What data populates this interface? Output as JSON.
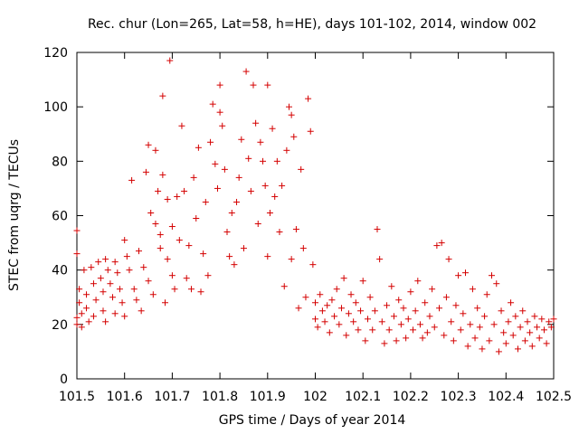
{
  "chart_data": {
    "type": "scatter",
    "title": "Rec. chur (Lon=265, Lat=58, h=HE), days 101-102, 2014, window 002",
    "xlabel": "GPS time / Days of year 2014",
    "ylabel": "STEC from uqrg / TECUs",
    "xlim": [
      101.5,
      102.5
    ],
    "ylim": [
      0,
      120
    ],
    "xticks": [
      "101.5",
      "101.6",
      "101.7",
      "101.8",
      "101.9",
      "102",
      "102.1",
      "102.2",
      "102.3",
      "102.4",
      "102.5"
    ],
    "yticks": [
      "0",
      "20",
      "40",
      "60",
      "80",
      "100",
      "120"
    ],
    "grid": false,
    "legend": "none",
    "marker": "plus",
    "color": "#d40000",
    "series": [
      {
        "points": [
          [
            101.5,
            54.5
          ],
          [
            101.5,
            46.0
          ],
          [
            101.5,
            20.0
          ],
          [
            101.5,
            22.5
          ],
          [
            101.505,
            28.0
          ],
          [
            101.505,
            33.0
          ],
          [
            101.51,
            19.0
          ],
          [
            101.51,
            24.0
          ],
          [
            101.515,
            40.0
          ],
          [
            101.52,
            31.0
          ],
          [
            101.52,
            26.0
          ],
          [
            101.525,
            21.0
          ],
          [
            101.53,
            41.0
          ],
          [
            101.535,
            35.0
          ],
          [
            101.535,
            23.0
          ],
          [
            101.54,
            29.0
          ],
          [
            101.545,
            43.0
          ],
          [
            101.55,
            37.0
          ],
          [
            101.555,
            32.0
          ],
          [
            101.555,
            25.0
          ],
          [
            101.56,
            21.0
          ],
          [
            101.56,
            44.0
          ],
          [
            101.565,
            40.0
          ],
          [
            101.57,
            35.0
          ],
          [
            101.575,
            30.0
          ],
          [
            101.58,
            24.0
          ],
          [
            101.58,
            43.0
          ],
          [
            101.585,
            39.0
          ],
          [
            101.59,
            33.0
          ],
          [
            101.595,
            28.0
          ],
          [
            101.6,
            23.0
          ],
          [
            101.6,
            51.0
          ],
          [
            101.605,
            45.0
          ],
          [
            101.61,
            40.0
          ],
          [
            101.615,
            73.0
          ],
          [
            101.62,
            33.0
          ],
          [
            101.625,
            29.0
          ],
          [
            101.63,
            47.0
          ],
          [
            101.635,
            25.0
          ],
          [
            101.64,
            41.0
          ],
          [
            101.645,
            76.0
          ],
          [
            101.65,
            36.0
          ],
          [
            101.65,
            86.0
          ],
          [
            101.655,
            61.0
          ],
          [
            101.66,
            31.0
          ],
          [
            101.665,
            57.0
          ],
          [
            101.665,
            84.0
          ],
          [
            101.67,
            69.0
          ],
          [
            101.675,
            48.0
          ],
          [
            101.675,
            53.0
          ],
          [
            101.68,
            75.0
          ],
          [
            101.68,
            104.0
          ],
          [
            101.685,
            28.0
          ],
          [
            101.69,
            44.0
          ],
          [
            101.69,
            66.0
          ],
          [
            101.695,
            117.0
          ],
          [
            101.7,
            56.0
          ],
          [
            101.7,
            38.0
          ],
          [
            101.705,
            33.0
          ],
          [
            101.71,
            67.0
          ],
          [
            101.715,
            51.0
          ],
          [
            101.72,
            93.0
          ],
          [
            101.725,
            69.0
          ],
          [
            101.73,
            37.0
          ],
          [
            101.735,
            49.0
          ],
          [
            101.74,
            33.0
          ],
          [
            101.745,
            74.0
          ],
          [
            101.75,
            59.0
          ],
          [
            101.755,
            85.0
          ],
          [
            101.76,
            32.0
          ],
          [
            101.765,
            46.0
          ],
          [
            101.77,
            65.0
          ],
          [
            101.775,
            38.0
          ],
          [
            101.78,
            87.0
          ],
          [
            101.785,
            101.0
          ],
          [
            101.79,
            79.0
          ],
          [
            101.795,
            70.0
          ],
          [
            101.8,
            108.0
          ],
          [
            101.8,
            98.0
          ],
          [
            101.805,
            93.0
          ],
          [
            101.81,
            77.0
          ],
          [
            101.815,
            54.0
          ],
          [
            101.82,
            45.0
          ],
          [
            101.825,
            61.0
          ],
          [
            101.83,
            42.0
          ],
          [
            101.835,
            65.0
          ],
          [
            101.84,
            74.0
          ],
          [
            101.845,
            88.0
          ],
          [
            101.85,
            48.0
          ],
          [
            101.855,
            113.0
          ],
          [
            101.86,
            81.0
          ],
          [
            101.865,
            69.0
          ],
          [
            101.87,
            108.0
          ],
          [
            101.875,
            94.0
          ],
          [
            101.88,
            57.0
          ],
          [
            101.885,
            87.0
          ],
          [
            101.89,
            80.0
          ],
          [
            101.895,
            71.0
          ],
          [
            101.9,
            108.0
          ],
          [
            101.9,
            45.0
          ],
          [
            101.905,
            61.0
          ],
          [
            101.91,
            92.0
          ],
          [
            101.915,
            67.0
          ],
          [
            101.92,
            80.0
          ],
          [
            101.925,
            54.0
          ],
          [
            101.93,
            71.0
          ],
          [
            101.935,
            34.0
          ],
          [
            101.94,
            84.0
          ],
          [
            101.945,
            100.0
          ],
          [
            101.95,
            97.0
          ],
          [
            101.95,
            44.0
          ],
          [
            101.955,
            89.0
          ],
          [
            101.96,
            55.0
          ],
          [
            101.965,
            26.0
          ],
          [
            101.97,
            77.0
          ],
          [
            101.975,
            48.0
          ],
          [
            101.98,
            30.0
          ],
          [
            101.985,
            103.0
          ],
          [
            101.99,
            91.0
          ],
          [
            101.995,
            42.0
          ],
          [
            102.0,
            22.0
          ],
          [
            102.0,
            28.0
          ],
          [
            102.005,
            19.0
          ],
          [
            102.01,
            31.0
          ],
          [
            102.015,
            25.0
          ],
          [
            102.02,
            21.0
          ],
          [
            102.025,
            27.0
          ],
          [
            102.03,
            17.0
          ],
          [
            102.035,
            29.0
          ],
          [
            102.04,
            23.0
          ],
          [
            102.045,
            33.0
          ],
          [
            102.05,
            20.0
          ],
          [
            102.055,
            26.0
          ],
          [
            102.06,
            37.0
          ],
          [
            102.065,
            16.0
          ],
          [
            102.07,
            24.0
          ],
          [
            102.075,
            31.0
          ],
          [
            102.08,
            21.0
          ],
          [
            102.085,
            28.0
          ],
          [
            102.09,
            18.0
          ],
          [
            102.095,
            25.0
          ],
          [
            102.1,
            36.0
          ],
          [
            102.105,
            14.0
          ],
          [
            102.11,
            22.0
          ],
          [
            102.115,
            30.0
          ],
          [
            102.12,
            18.0
          ],
          [
            102.125,
            25.0
          ],
          [
            102.13,
            55.0
          ],
          [
            102.135,
            44.0
          ],
          [
            102.14,
            21.0
          ],
          [
            102.145,
            13.0
          ],
          [
            102.15,
            27.0
          ],
          [
            102.155,
            18.0
          ],
          [
            102.16,
            34.0
          ],
          [
            102.165,
            23.0
          ],
          [
            102.17,
            14.0
          ],
          [
            102.175,
            29.0
          ],
          [
            102.18,
            20.0
          ],
          [
            102.185,
            26.0
          ],
          [
            102.19,
            15.0
          ],
          [
            102.195,
            22.0
          ],
          [
            102.2,
            32.0
          ],
          [
            102.205,
            18.0
          ],
          [
            102.21,
            25.0
          ],
          [
            102.215,
            36.0
          ],
          [
            102.22,
            20.0
          ],
          [
            102.225,
            15.0
          ],
          [
            102.23,
            28.0
          ],
          [
            102.235,
            17.0
          ],
          [
            102.24,
            23.0
          ],
          [
            102.245,
            33.0
          ],
          [
            102.25,
            19.0
          ],
          [
            102.255,
            49.0
          ],
          [
            102.26,
            26.0
          ],
          [
            102.265,
            50.0
          ],
          [
            102.27,
            16.0
          ],
          [
            102.275,
            30.0
          ],
          [
            102.28,
            44.0
          ],
          [
            102.285,
            21.0
          ],
          [
            102.29,
            14.0
          ],
          [
            102.295,
            27.0
          ],
          [
            102.3,
            38.0
          ],
          [
            102.305,
            18.0
          ],
          [
            102.31,
            24.0
          ],
          [
            102.315,
            39.0
          ],
          [
            102.32,
            12.0
          ],
          [
            102.325,
            20.0
          ],
          [
            102.33,
            33.0
          ],
          [
            102.335,
            15.0
          ],
          [
            102.34,
            26.0
          ],
          [
            102.345,
            19.0
          ],
          [
            102.35,
            11.0
          ],
          [
            102.355,
            23.0
          ],
          [
            102.36,
            31.0
          ],
          [
            102.365,
            14.0
          ],
          [
            102.37,
            38.0
          ],
          [
            102.375,
            20.0
          ],
          [
            102.38,
            35.0
          ],
          [
            102.385,
            10.0
          ],
          [
            102.39,
            25.0
          ],
          [
            102.395,
            17.0
          ],
          [
            102.4,
            13.0
          ],
          [
            102.405,
            21.0
          ],
          [
            102.41,
            28.0
          ],
          [
            102.415,
            16.0
          ],
          [
            102.42,
            23.0
          ],
          [
            102.425,
            11.0
          ],
          [
            102.43,
            19.0
          ],
          [
            102.435,
            25.0
          ],
          [
            102.44,
            14.0
          ],
          [
            102.445,
            21.0
          ],
          [
            102.45,
            17.0
          ],
          [
            102.455,
            12.0
          ],
          [
            102.46,
            23.0
          ],
          [
            102.465,
            19.0
          ],
          [
            102.47,
            15.0
          ],
          [
            102.475,
            22.0
          ],
          [
            102.48,
            18.0
          ],
          [
            102.485,
            13.0
          ],
          [
            102.49,
            21.0
          ],
          [
            102.495,
            19.0
          ],
          [
            102.5,
            22.0
          ]
        ]
      }
    ]
  }
}
